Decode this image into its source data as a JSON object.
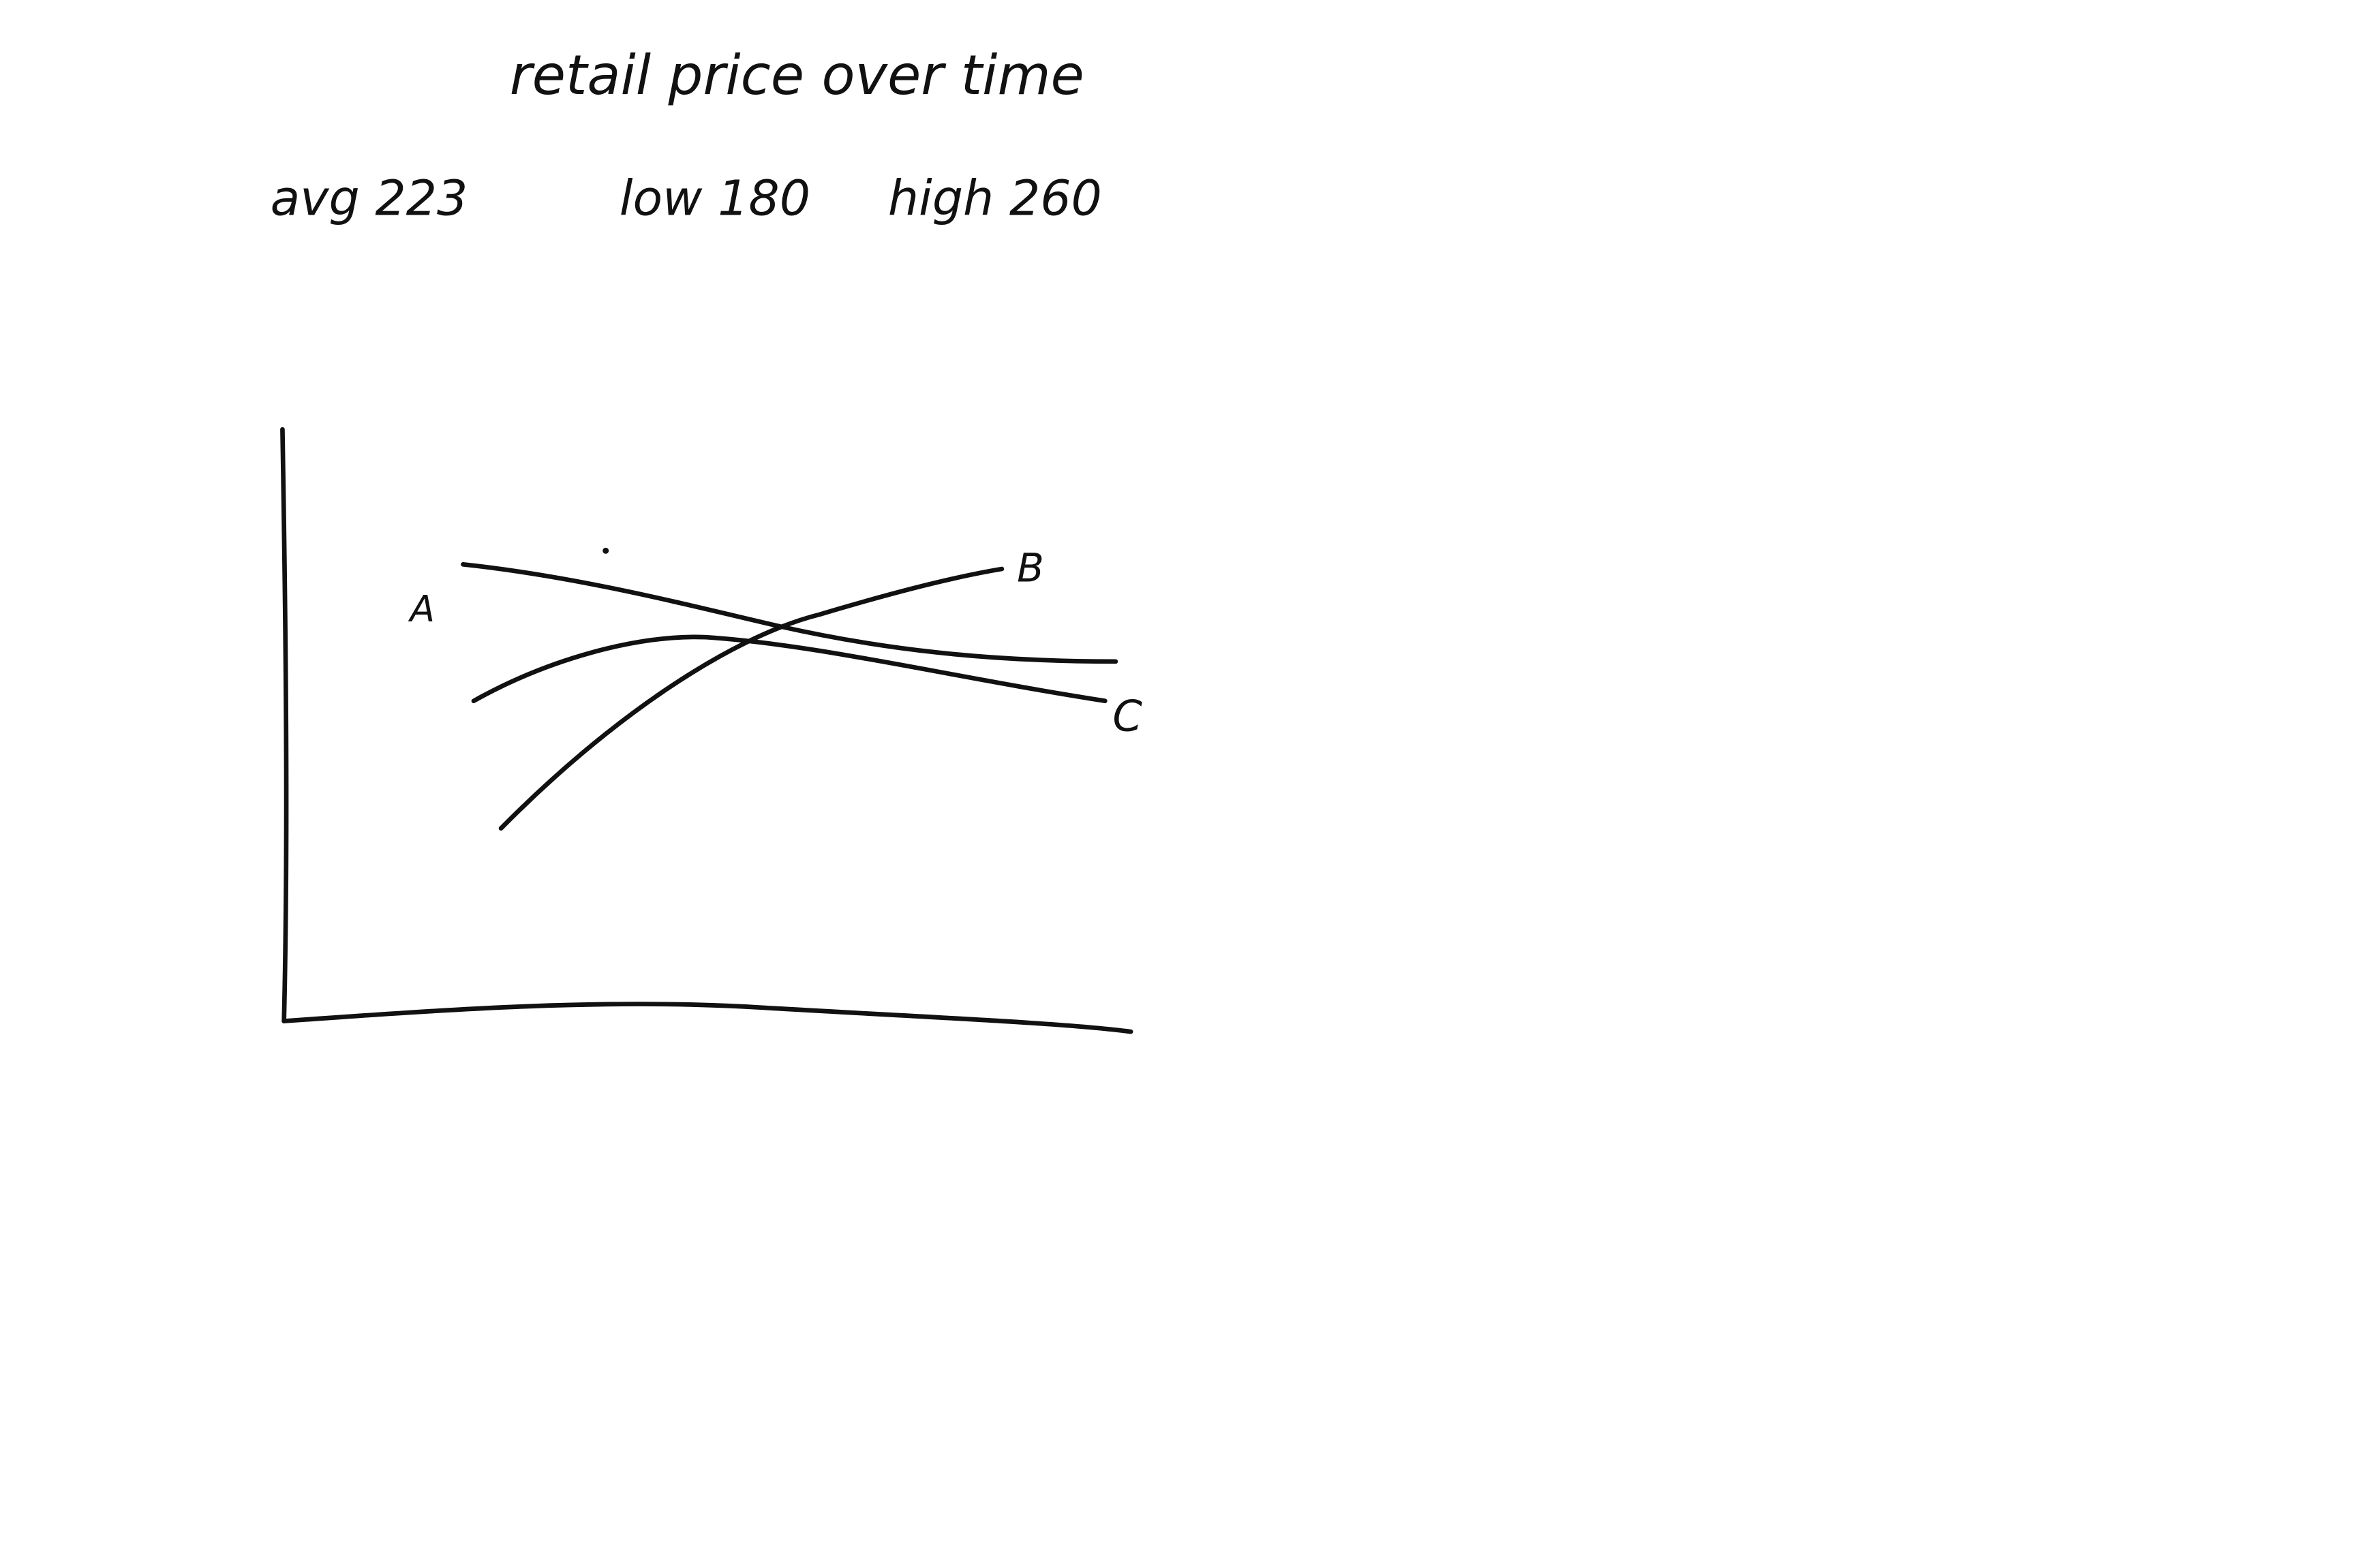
{
  "title": "retail price over time",
  "stats": [
    "avg 223",
    "low 180",
    "high 260"
  ],
  "line_labels": [
    "A",
    "B",
    "C"
  ]
}
